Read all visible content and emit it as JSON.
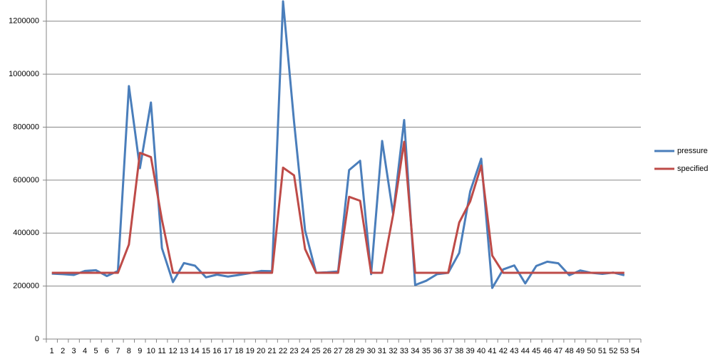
{
  "chart_data": {
    "type": "line",
    "categories": [
      1,
      2,
      3,
      4,
      5,
      6,
      7,
      8,
      9,
      10,
      11,
      12,
      13,
      14,
      15,
      16,
      17,
      18,
      19,
      20,
      21,
      22,
      23,
      24,
      25,
      26,
      27,
      28,
      29,
      30,
      31,
      32,
      33,
      34,
      35,
      36,
      37,
      38,
      39,
      40,
      41,
      42,
      43,
      44,
      45,
      46,
      47,
      48,
      49,
      50,
      51,
      52,
      53,
      54
    ],
    "series": [
      {
        "name": "pressure",
        "color": "#4a7ebb",
        "values": [
          247000,
          245000,
          242000,
          257000,
          260000,
          238000,
          257000,
          955000,
          645000,
          893000,
          343000,
          215000,
          287000,
          277000,
          233000,
          243000,
          236000,
          242000,
          249000,
          257000,
          256000,
          1275000,
          820000,
          410000,
          250000,
          252000,
          255000,
          638000,
          673000,
          245000,
          748000,
          472000,
          827000,
          204000,
          220000,
          245000,
          250000,
          325000,
          558000,
          681000,
          193000,
          263000,
          278000,
          210000,
          276000,
          292000,
          286000,
          241000,
          259000,
          250000,
          246000,
          251000,
          241000,
          null
        ]
      },
      {
        "name": "specified",
        "color": "#be4b48",
        "values": [
          250000,
          250000,
          250000,
          250000,
          250000,
          250000,
          250000,
          357000,
          703000,
          687000,
          450000,
          250000,
          250000,
          250000,
          250000,
          250000,
          250000,
          250000,
          250000,
          250000,
          250000,
          647000,
          618000,
          340000,
          250000,
          250000,
          250000,
          537000,
          522000,
          250000,
          250000,
          470000,
          745000,
          250000,
          250000,
          250000,
          250000,
          440000,
          520000,
          655000,
          315000,
          250000,
          250000,
          250000,
          250000,
          250000,
          250000,
          250000,
          250000,
          250000,
          250000,
          250000,
          250000,
          null
        ]
      }
    ],
    "ylim": [
      0,
      1280000
    ],
    "yticks": [
      0,
      200000,
      400000,
      600000,
      800000,
      1000000,
      1200000
    ],
    "grid": true,
    "legend": "right"
  }
}
